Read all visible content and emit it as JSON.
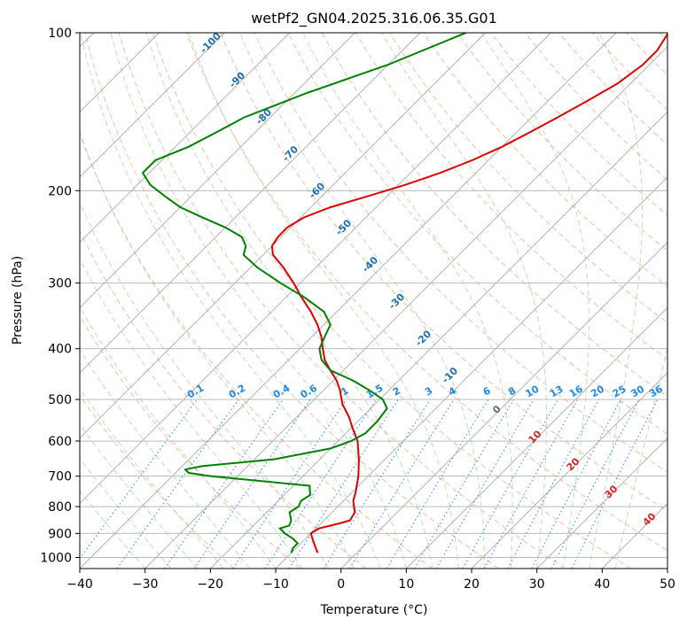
{
  "chart_data": {
    "type": "skew-t",
    "title": "wetPf2_GN04.2025.316.06.35.G01",
    "xlabel": "Temperature (°C)",
    "ylabel": "Pressure (hPa)",
    "xlim": [
      -40,
      50
    ],
    "ylim": [
      1050,
      100
    ],
    "y_scale": "log",
    "x_ticks": [
      -40,
      -30,
      -20,
      -10,
      0,
      10,
      20,
      30,
      40,
      50
    ],
    "x_tick_labels": [
      "−40",
      "−30",
      "−20",
      "−10",
      "0",
      "10",
      "20",
      "30",
      "40",
      "50"
    ],
    "y_ticks": [
      1000,
      900,
      800,
      700,
      600,
      500,
      400,
      300,
      200,
      100
    ],
    "y_tick_labels": [
      "1000",
      "900",
      "800",
      "700",
      "600",
      "500",
      "400",
      "300",
      "200",
      "100"
    ],
    "grid": true,
    "colors": {
      "temperature": "#e00000",
      "dewpoint": "#008000",
      "isotherm": "#aaaaaa",
      "dry_adiabat": "#f4a582",
      "moist_adiabat": "#a6d8a6",
      "mixing_ratio": "#1e88e5",
      "moist_label": "#1f6fb0",
      "dry_label": "#d62728",
      "lcl_label": "#666666",
      "pressure_grid": "#b0b0b0",
      "reference_curve": "#d2b48c"
    },
    "temperature_profile": {
      "pressure": [
        980,
        950,
        920,
        900,
        880,
        860,
        850,
        820,
        800,
        780,
        750,
        700,
        650,
        600,
        570,
        540,
        510,
        480,
        460,
        440,
        420,
        400,
        380,
        360,
        340,
        320,
        300,
        280,
        265,
        255,
        245,
        235,
        225,
        215,
        205,
        195,
        185,
        175,
        165,
        155,
        145,
        135,
        125,
        115,
        108,
        100
      ],
      "temperature": [
        -6.0,
        -7.5,
        -9.0,
        -10.0,
        -9.5,
        -7.0,
        -6.0,
        -6.5,
        -7.5,
        -8.5,
        -9.5,
        -11.5,
        -14.0,
        -17.0,
        -19.5,
        -22.0,
        -25.0,
        -27.5,
        -29.5,
        -32.0,
        -34.5,
        -36.5,
        -38.5,
        -41.0,
        -44.0,
        -47.5,
        -51.0,
        -55.0,
        -58.5,
        -60.0,
        -60.5,
        -60.5,
        -59.5,
        -57.0,
        -53.0,
        -49.0,
        -45.5,
        -42.5,
        -40.0,
        -38.0,
        -36.0,
        -34.0,
        -32.0,
        -31.0,
        -31.0,
        -32.0
      ]
    },
    "dewpoint_profile": {
      "pressure": [
        980,
        960,
        940,
        920,
        900,
        880,
        870,
        850,
        820,
        800,
        780,
        760,
        730,
        700,
        690,
        680,
        670,
        650,
        620,
        600,
        580,
        550,
        520,
        500,
        480,
        460,
        440,
        420,
        400,
        380,
        360,
        340,
        320,
        300,
        280,
        265,
        255,
        245,
        235,
        225,
        215,
        205,
        195,
        185,
        175,
        165,
        155,
        145,
        130,
        115,
        100
      ],
      "dewpoint": [
        -10.0,
        -10.5,
        -10.5,
        -12.0,
        -14.0,
        -15.5,
        -14.5,
        -15.0,
        -16.5,
        -16.0,
        -16.5,
        -16.0,
        -17.5,
        -34.0,
        -38.0,
        -39.0,
        -37.0,
        -27.0,
        -20.0,
        -18.0,
        -17.0,
        -17.0,
        -17.5,
        -19.5,
        -23.0,
        -27.0,
        -32.0,
        -35.0,
        -37.0,
        -38.0,
        -39.0,
        -42.0,
        -47.0,
        -53.0,
        -59.0,
        -63.0,
        -64.0,
        -66.0,
        -70.0,
        -75.0,
        -80.0,
        -84.0,
        -88.0,
        -91.0,
        -91.0,
        -88.0,
        -86.0,
        -84.0,
        -78.0,
        -70.0,
        -63.0
      ]
    },
    "mixing_ratio_labels": [
      "0.1",
      "0.2",
      "0.4",
      "0.6",
      "1",
      "1.5",
      "2",
      "3",
      "4",
      "6",
      "8",
      "10",
      "13",
      "16",
      "20",
      "25",
      "30",
      "36"
    ],
    "moist_adiabat_labels": [
      "-100",
      "-90",
      "-80",
      "-70",
      "-60",
      "-50",
      "-40",
      "-30",
      "-20",
      "-10"
    ],
    "dry_adiabat_labels": [
      "0",
      "10",
      "20",
      "30",
      "40"
    ]
  }
}
